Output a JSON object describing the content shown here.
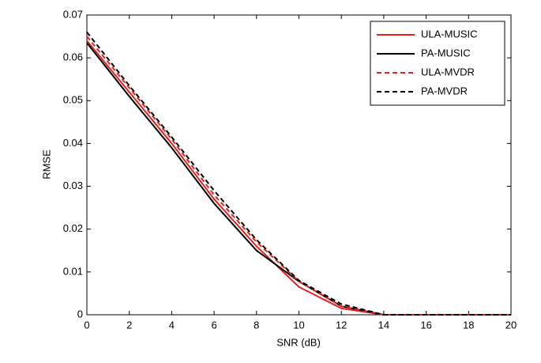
{
  "chart_data": {
    "type": "line",
    "xlabel": "SNR (dB)",
    "ylabel": "RMSE",
    "x": [
      0,
      2,
      4,
      6,
      8,
      10,
      12,
      14,
      16,
      18,
      20
    ],
    "xlim": [
      0,
      20
    ],
    "xticks": [
      0,
      2,
      4,
      6,
      8,
      10,
      12,
      14,
      16,
      18,
      20
    ],
    "ylim": [
      0,
      0.07
    ],
    "yticks": [
      0,
      0.01,
      0.02,
      0.03,
      0.04,
      0.05,
      0.06,
      0.07
    ],
    "grid": false,
    "legend": "upper right",
    "series": [
      {
        "name": "ULA-MUSIC",
        "color": "#e8201e",
        "dash": false,
        "values": [
          0.064,
          0.052,
          0.04,
          0.027,
          0.016,
          0.0065,
          0.0015,
          0,
          0,
          0,
          0
        ]
      },
      {
        "name": "PA-MUSIC",
        "color": "#000000",
        "dash": false,
        "values": [
          0.0635,
          0.051,
          0.039,
          0.026,
          0.015,
          0.0078,
          0.002,
          0,
          0,
          0,
          0
        ]
      },
      {
        "name": "ULA-MVDR",
        "color": "#e8201e",
        "dash": true,
        "values": [
          0.065,
          0.053,
          0.041,
          0.028,
          0.017,
          0.0078,
          0.002,
          0,
          0,
          0,
          0
        ]
      },
      {
        "name": "PA-MVDR",
        "color": "#000000",
        "dash": true,
        "values": [
          0.066,
          0.0535,
          0.0415,
          0.029,
          0.0175,
          0.008,
          0.0025,
          0,
          0,
          0,
          0
        ]
      }
    ]
  }
}
